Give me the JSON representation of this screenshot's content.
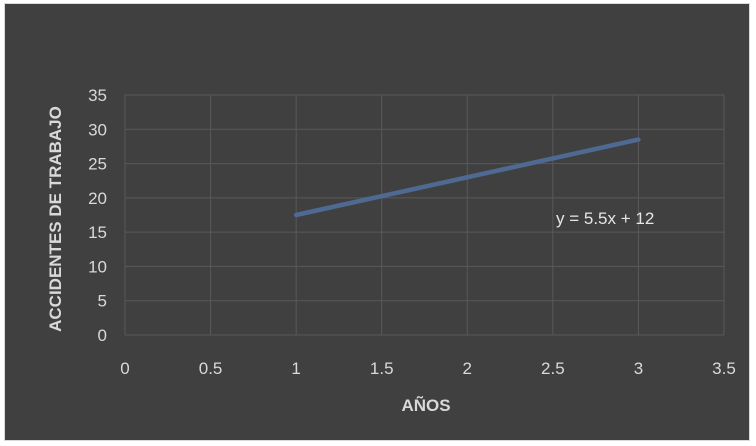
{
  "chart_data": {
    "type": "line",
    "title": "",
    "xlabel": "AÑOS",
    "ylabel": "ACCIDENTES DE TRABAJO",
    "xlim": [
      0,
      3.5
    ],
    "ylim": [
      0,
      35
    ],
    "x_ticks": [
      "0",
      "0.5",
      "1",
      "1.5",
      "2",
      "2.5",
      "3",
      "3.5"
    ],
    "y_ticks": [
      "0",
      "5",
      "10",
      "15",
      "20",
      "25",
      "30",
      "35"
    ],
    "grid": true,
    "legend": "none",
    "series": [
      {
        "x": [
          1,
          3
        ],
        "y": [
          17.5,
          28.5
        ]
      }
    ],
    "trendline_label": "y = 5.5x + 12",
    "colors": {
      "background": "#404040",
      "line": "#4f6a92",
      "grid": "#595959",
      "text": "#d9d9d9"
    }
  }
}
